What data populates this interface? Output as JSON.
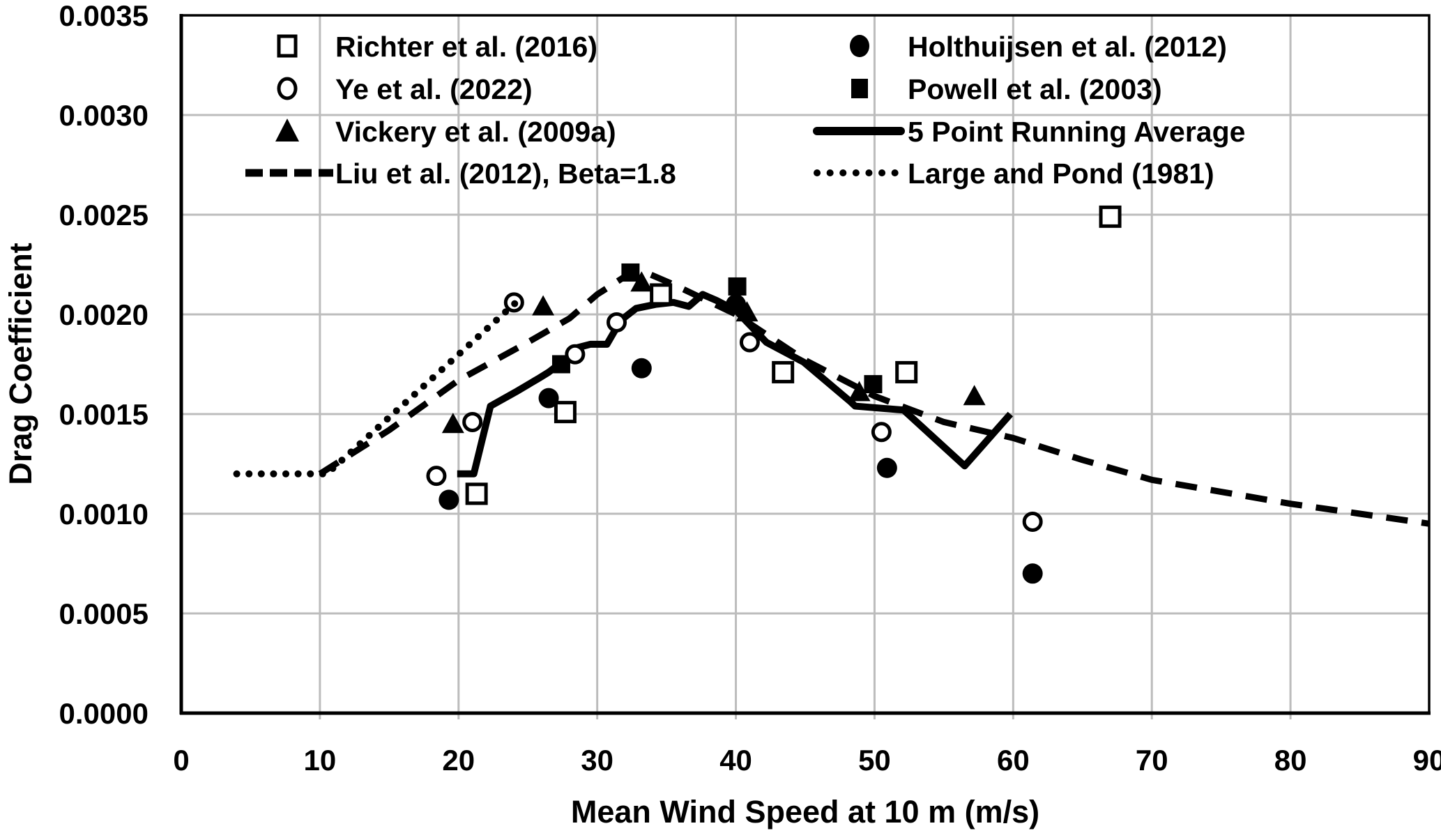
{
  "chart_data": {
    "type": "scatter",
    "title": "",
    "xlabel": "Mean Wind Speed at 10 m (m/s)",
    "ylabel": "Drag Coefficient",
    "x_axis": {
      "min": 0,
      "max": 90,
      "tick_step": 10
    },
    "y_axis": {
      "min": 0,
      "max": 0.0035,
      "tick_step": 0.0005,
      "decimals": 4
    },
    "x_tick_labels": [
      "0",
      "10",
      "20",
      "30",
      "40",
      "50",
      "60",
      "70",
      "80",
      "90"
    ],
    "y_tick_labels": [
      "0.0000",
      "0.0005",
      "0.0010",
      "0.0015",
      "0.0020",
      "0.0025",
      "0.0030",
      "0.0035"
    ],
    "grid": true,
    "colors": {
      "line": "#000000",
      "grid": "#bcbcbc",
      "background": "#ffffff"
    },
    "series": [
      {
        "id": "richter",
        "label": "Richter et al. (2016)",
        "marker": "open-square",
        "points": [
          [
            21.3,
            0.0011
          ],
          [
            27.7,
            0.00151
          ],
          [
            34.6,
            0.0021
          ],
          [
            43.4,
            0.00171
          ],
          [
            52.3,
            0.00171
          ],
          [
            67,
            0.00249
          ]
        ]
      },
      {
        "id": "ye",
        "label": "Ye et al. (2022)",
        "marker": "open-circle",
        "points": [
          [
            18.4,
            0.00119
          ],
          [
            21.0,
            0.00146
          ],
          [
            24.0,
            0.00206
          ],
          [
            28.4,
            0.0018
          ],
          [
            31.4,
            0.00196
          ],
          [
            41.0,
            0.00186
          ],
          [
            50.5,
            0.00141
          ],
          [
            61.4,
            0.00096
          ]
        ]
      },
      {
        "id": "vickery",
        "label": "Vickery et al. (2009a)",
        "marker": "filled-triangle",
        "points": [
          [
            19.6,
            0.00145
          ],
          [
            26.1,
            0.00204
          ],
          [
            33.2,
            0.00216
          ],
          [
            40.8,
            0.00201
          ],
          [
            48.9,
            0.00161
          ],
          [
            57.2,
            0.00159
          ]
        ]
      },
      {
        "id": "liu",
        "label": "Liu et al. (2012), Beta=1.8",
        "marker": "dashed-line",
        "points": [
          [
            10,
            0.0012
          ],
          [
            15,
            0.00142
          ],
          [
            20,
            0.00167
          ],
          [
            25,
            0.00186
          ],
          [
            28,
            0.00198
          ],
          [
            30,
            0.0021
          ],
          [
            32,
            0.00219
          ],
          [
            33.5,
            0.00221
          ],
          [
            35.5,
            0.00215
          ],
          [
            40,
            0.002
          ],
          [
            45,
            0.00177
          ],
          [
            50,
            0.00159
          ],
          [
            55,
            0.00146
          ],
          [
            60,
            0.00138
          ],
          [
            65,
            0.00127
          ],
          [
            70,
            0.00117
          ],
          [
            75,
            0.00111
          ],
          [
            80,
            0.00105
          ],
          [
            85,
            0.001
          ],
          [
            90,
            0.00095
          ]
        ]
      },
      {
        "id": "holthuijsen",
        "label": "Holthuijsen et al. (2012)",
        "marker": "filled-circle",
        "points": [
          [
            19.3,
            0.00107
          ],
          [
            26.5,
            0.00158
          ],
          [
            33.2,
            0.00173
          ],
          [
            40.0,
            0.00205
          ],
          [
            50.9,
            0.00123
          ],
          [
            61.4,
            0.0007
          ]
        ]
      },
      {
        "id": "powell",
        "label": "Powell et al. (2003)",
        "marker": "filled-square",
        "points": [
          [
            27.4,
            0.00175
          ],
          [
            32.4,
            0.00221
          ],
          [
            40.1,
            0.00214
          ],
          [
            49.9,
            0.00165
          ]
        ]
      },
      {
        "id": "running_avg",
        "label": "5 Point Running Average",
        "marker": "solid-line",
        "points": [
          [
            19.9,
            0.0012
          ],
          [
            21.1,
            0.0012
          ],
          [
            22.3,
            0.00154
          ],
          [
            24.1,
            0.00161
          ],
          [
            25.8,
            0.00168
          ],
          [
            26.5,
            0.00171
          ],
          [
            28.0,
            0.00179
          ],
          [
            28.4,
            0.00183
          ],
          [
            29.5,
            0.00185
          ],
          [
            30.7,
            0.00185
          ],
          [
            31.7,
            0.00197
          ],
          [
            32.8,
            0.00203
          ],
          [
            34.2,
            0.00205
          ],
          [
            35.5,
            0.00206
          ],
          [
            36.6,
            0.00204
          ],
          [
            37.6,
            0.0021
          ],
          [
            38.6,
            0.00207
          ],
          [
            40.0,
            0.00202
          ],
          [
            42.2,
            0.00186
          ],
          [
            44.9,
            0.00176
          ],
          [
            48.3,
            0.00156
          ],
          [
            48.6,
            0.00154
          ],
          [
            52.1,
            0.00152
          ],
          [
            56.5,
            0.00124
          ],
          [
            59.8,
            0.0015
          ]
        ]
      },
      {
        "id": "large_pond",
        "label": "Large and Pond (1981)",
        "marker": "dotted-line",
        "points": [
          [
            4,
            0.0012
          ],
          [
            10.5,
            0.0012
          ],
          [
            24.3,
            0.00207
          ]
        ]
      }
    ],
    "legend": {
      "position": "top-inside",
      "columns": [
        [
          "richter",
          "ye",
          "vickery",
          "liu"
        ],
        [
          "holthuijsen",
          "powell",
          "running_avg",
          "large_pond"
        ]
      ]
    }
  }
}
